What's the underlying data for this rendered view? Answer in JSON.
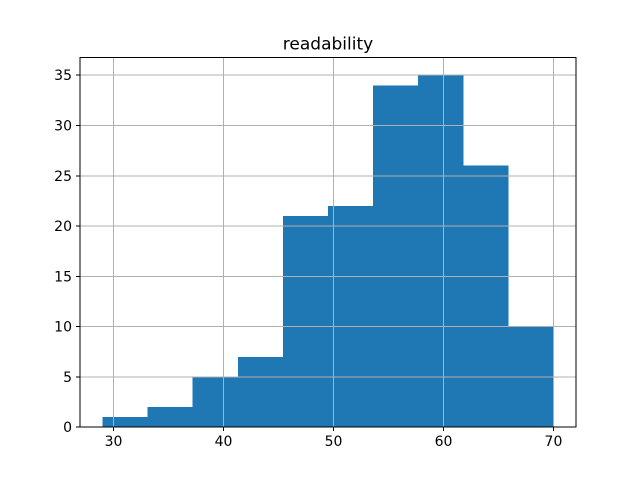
{
  "chart_data": {
    "type": "bar",
    "subtype": "histogram",
    "title": "readability",
    "bin_edges": [
      29.0,
      33.1,
      37.2,
      41.3,
      45.4,
      49.5,
      53.6,
      57.7,
      61.8,
      65.9,
      70.0
    ],
    "counts": [
      1,
      2,
      5,
      7,
      21,
      22,
      34,
      35,
      26,
      10
    ],
    "x_ticks": [
      30,
      40,
      50,
      60,
      70
    ],
    "x_tick_labels": [
      "30",
      "40",
      "50",
      "60",
      "70"
    ],
    "y_ticks": [
      0,
      5,
      10,
      15,
      20,
      25,
      30,
      35
    ],
    "y_tick_labels": [
      "0",
      "5",
      "10",
      "15",
      "20",
      "25",
      "30",
      "35"
    ],
    "xlim": [
      26.95,
      72.05
    ],
    "ylim": [
      0,
      36.75
    ],
    "xlabel": "",
    "ylabel": "",
    "grid": true,
    "grid_over_bars": true,
    "legend_position": "none",
    "colors": {
      "bar": "#1f77b4",
      "grid": "#b0b0b0",
      "spine": "#000000",
      "text": "#000000",
      "background": "#ffffff"
    }
  }
}
